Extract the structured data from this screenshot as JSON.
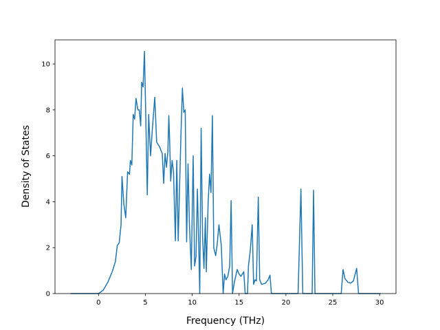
{
  "chart_data": {
    "type": "line",
    "xlabel": "Frequency (THz)",
    "ylabel": "Density of States",
    "x": [
      -3,
      -1,
      0,
      0.5,
      1,
      1.5,
      1.8,
      2,
      2.2,
      2.4,
      2.5,
      2.7,
      2.9,
      3.0,
      3.1,
      3.3,
      3.4,
      3.55,
      3.7,
      3.85,
      4.0,
      4.2,
      4.35,
      4.5,
      4.6,
      4.75,
      4.9,
      5.05,
      5.2,
      5.35,
      5.55,
      5.75,
      6.0,
      6.2,
      6.5,
      6.8,
      6.95,
      7.1,
      7.25,
      7.4,
      7.5,
      7.6,
      7.7,
      7.85,
      8.0,
      8.2,
      8.35,
      8.5,
      8.8,
      8.95,
      9.1,
      9.25,
      9.4,
      9.55,
      9.7,
      9.9,
      10.1,
      10.25,
      10.4,
      10.55,
      10.7,
      10.8,
      10.95,
      11.1,
      11.25,
      11.4,
      11.5,
      11.7,
      11.85,
      12.0,
      12.15,
      12.3,
      12.5,
      12.65,
      12.85,
      13.1,
      13.3,
      13.45,
      13.6,
      13.8,
      14.0,
      14.15,
      14.3,
      14.5,
      14.8,
      15.0,
      15.2,
      15.5,
      15.65,
      15.9,
      16.0,
      16.2,
      16.4,
      16.55,
      16.7,
      16.85,
      17.05,
      17.2,
      17.4,
      17.8,
      18.1,
      18.3,
      18.45,
      21.3,
      21.6,
      21.8,
      22.8,
      22.95,
      23.1,
      25.9,
      26.1,
      26.3,
      26.6,
      26.9,
      27.2,
      27.55,
      27.75,
      30.1
    ],
    "values": [
      0,
      0,
      0,
      0.15,
      0.5,
      1.0,
      1.4,
      2.1,
      2.2,
      3.0,
      5.1,
      3.9,
      3.3,
      4.3,
      5.3,
      5.2,
      5.8,
      5.6,
      7.8,
      7.6,
      8.5,
      8.0,
      8.0,
      7.3,
      9.2,
      9.0,
      10.55,
      7.5,
      4.3,
      7.8,
      6.0,
      7.2,
      8.55,
      6.6,
      6.4,
      6.1,
      4.8,
      6.1,
      5.5,
      6.2,
      7.75,
      6.5,
      4.9,
      5.8,
      5.3,
      2.3,
      5.8,
      2.3,
      7.0,
      8.95,
      7.9,
      8.0,
      2.25,
      5.65,
      3.0,
      1.05,
      6.0,
      1.2,
      1.6,
      4.55,
      2.0,
      0,
      7.2,
      2.5,
      1.1,
      3.3,
      0.95,
      4.0,
      5.2,
      4.4,
      7.75,
      2.0,
      1.65,
      2.1,
      3.0,
      2.1,
      0,
      0.85,
      0.6,
      0.75,
      1.2,
      4.05,
      0,
      0.5,
      1.05,
      0.85,
      0.75,
      0.95,
      0,
      0,
      1.2,
      1.9,
      3.0,
      0.4,
      0.6,
      0.55,
      4.2,
      0.6,
      0.4,
      0.45,
      0.6,
      0.8,
      0,
      0,
      4.55,
      0,
      0,
      4.5,
      0,
      0,
      1.05,
      0.65,
      0.5,
      0.45,
      0.55,
      1.1,
      0,
      0
    ],
    "color": "#1f77b4",
    "xlim": [
      -4.65,
      31.75
    ],
    "ylim": [
      0,
      11.05
    ],
    "xticks": [
      0,
      5,
      10,
      15,
      20,
      25,
      30
    ],
    "yticks": [
      0,
      2,
      4,
      6,
      8,
      10
    ]
  }
}
